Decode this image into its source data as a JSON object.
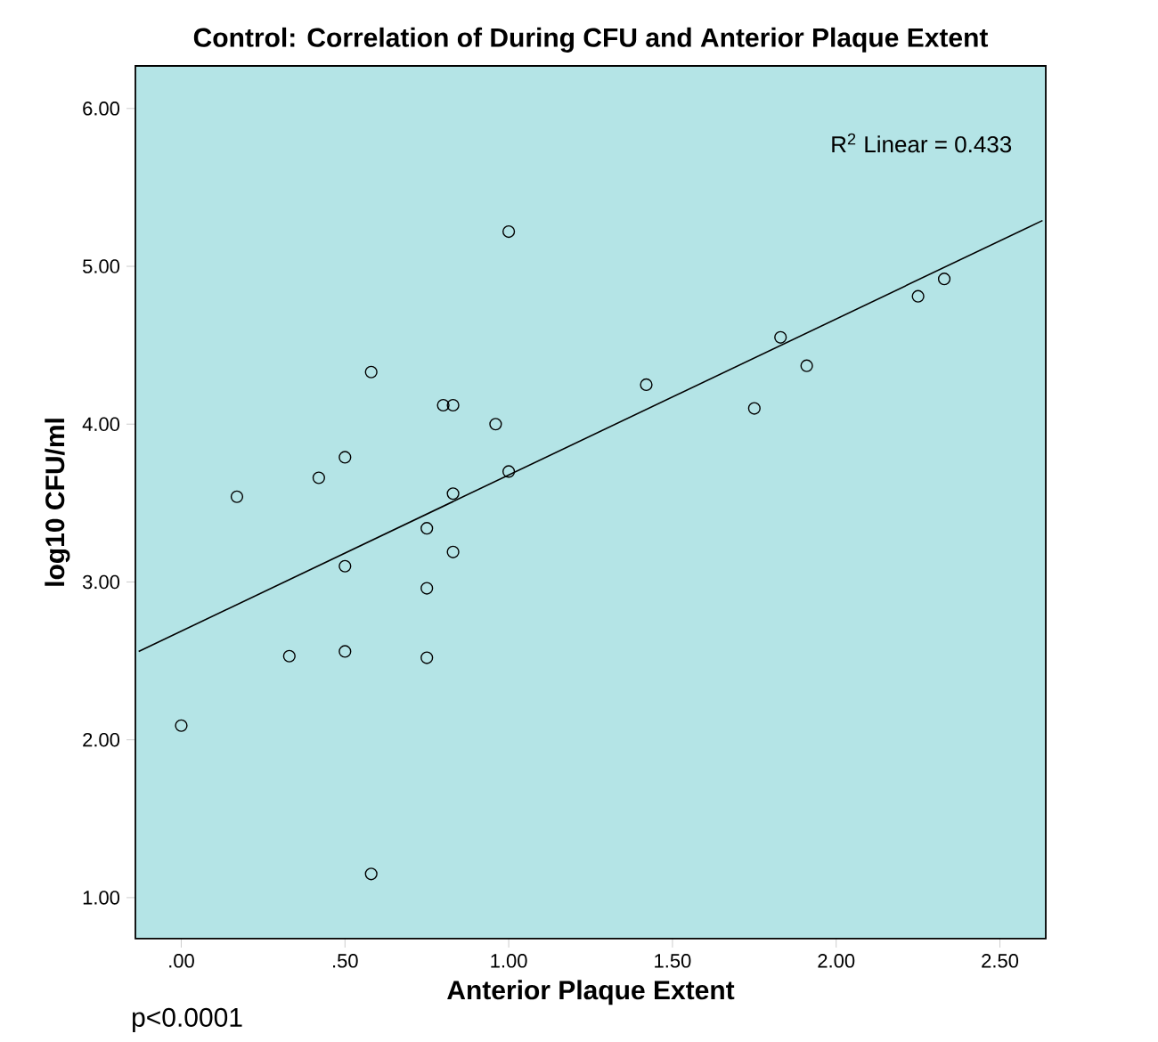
{
  "chart_data": {
    "type": "scatter",
    "title": "Control: Correlation of During CFU and Anterior Plaque Extent",
    "xlabel": "Anterior Plaque Extent",
    "ylabel": "log10 CFU/ml",
    "annotations": [
      "R$^{2}$ Linear = 0.433",
      "p<0.0001"
    ],
    "xlim": [
      -0.14,
      2.64
    ],
    "ylim": [
      0.74,
      6.27
    ],
    "xticks": [
      {
        "value": 0,
        "label": ".00"
      },
      {
        "value": 0.5,
        "label": ".50"
      },
      {
        "value": 1,
        "label": "1.00"
      },
      {
        "value": 1.5,
        "label": "1.50"
      },
      {
        "value": 2,
        "label": "2.00"
      },
      {
        "value": 2.5,
        "label": "2.50"
      }
    ],
    "yticks": [
      {
        "value": 1,
        "label": "1.00"
      },
      {
        "value": 2,
        "label": "2.00"
      },
      {
        "value": 3,
        "label": "3.00"
      },
      {
        "value": 4,
        "label": "4.00"
      },
      {
        "value": 5,
        "label": "5.00"
      },
      {
        "value": 6,
        "label": "6.00"
      }
    ],
    "marker": "circle",
    "grid": false,
    "series": [
      {
        "color": "#000000",
        "x": [
          0,
          0.17,
          0.42,
          0.5,
          0.58,
          0.8,
          0.83,
          0.96,
          1.0,
          1.0,
          0.83,
          0.75,
          0.83,
          0.5,
          0.75,
          0.33,
          0.5,
          0.75,
          0.58,
          1.42,
          1.75,
          1.83,
          1.91,
          2.25,
          2.33
        ],
        "values": [
          2.09,
          3.54,
          3.66,
          3.79,
          4.33,
          4.12,
          4.12,
          4.0,
          5.22,
          3.7,
          3.56,
          3.34,
          3.19,
          3.1,
          2.96,
          2.53,
          2.56,
          2.52,
          1.15,
          4.25,
          4.1,
          4.55,
          4.37,
          4.81,
          4.92
        ]
      },
      {
        "type": "line",
        "marker": "none",
        "color": "#000000",
        "x": [
          -0.13,
          2.63
        ],
        "values": [
          2.56,
          5.29
        ]
      }
    ]
  }
}
